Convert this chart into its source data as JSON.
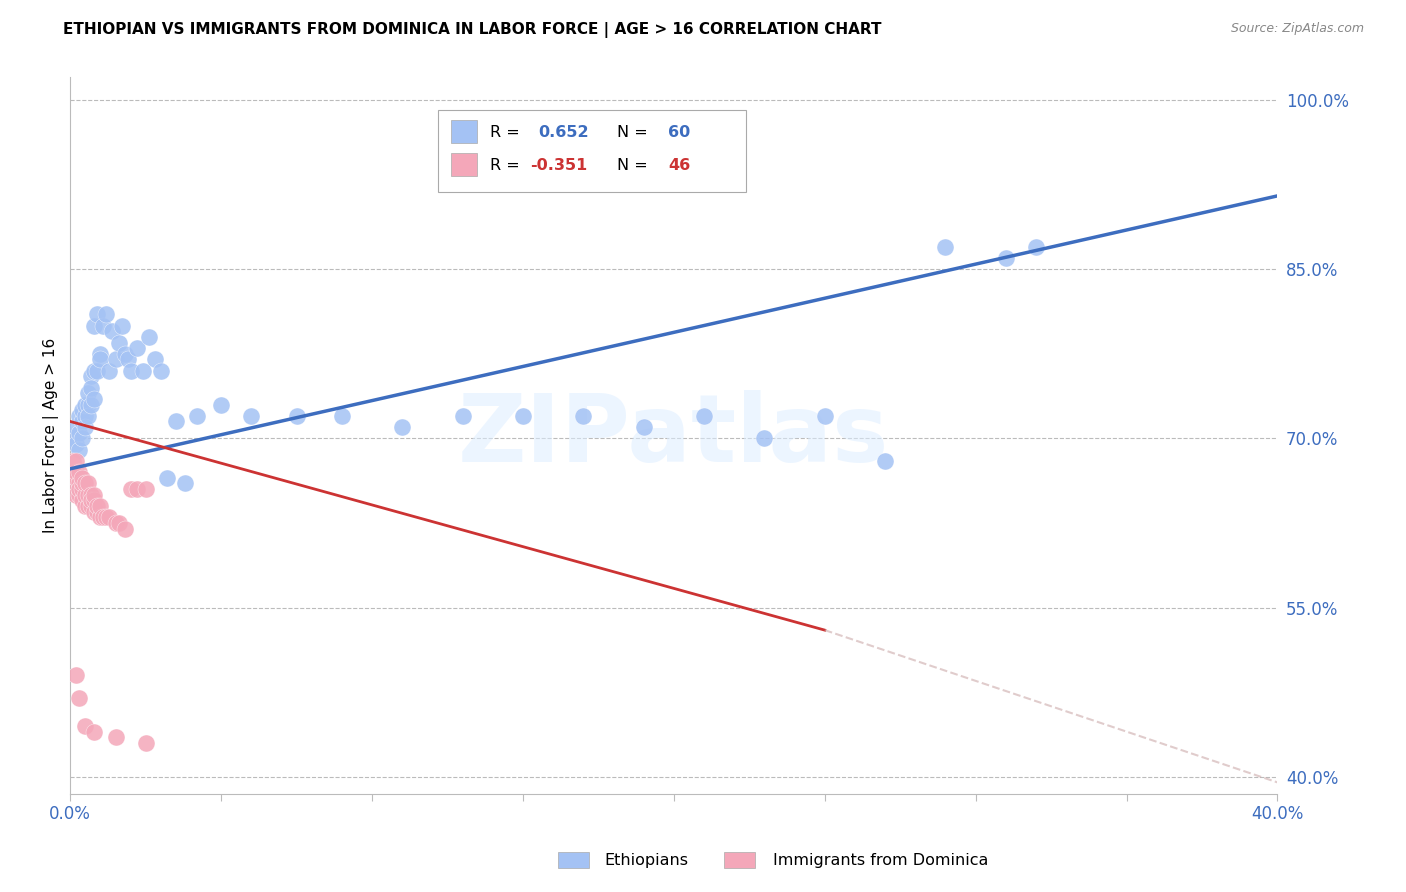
{
  "title": "ETHIOPIAN VS IMMIGRANTS FROM DOMINICA IN LABOR FORCE | AGE > 16 CORRELATION CHART",
  "source": "Source: ZipAtlas.com",
  "ylabel": "In Labor Force | Age > 16",
  "xlim": [
    0.0,
    0.4
  ],
  "ylim": [
    0.385,
    1.02
  ],
  "xticks": [
    0.0,
    0.05,
    0.1,
    0.15,
    0.2,
    0.25,
    0.3,
    0.35,
    0.4
  ],
  "yticks": [
    0.4,
    0.55,
    0.7,
    0.85,
    1.0
  ],
  "yticklabels": [
    "40.0%",
    "55.0%",
    "70.0%",
    "85.0%",
    "100.0%"
  ],
  "blue_R": 0.652,
  "blue_N": 60,
  "pink_R": -0.351,
  "pink_N": 46,
  "blue_color": "#a4c2f4",
  "pink_color": "#f4a7b9",
  "blue_line_color": "#3d6dbf",
  "pink_line_color": "#cc3333",
  "legend_label_blue": "Ethiopians",
  "legend_label_pink": "Immigrants from Dominica",
  "watermark": "ZIPatlas",
  "title_fontsize": 11,
  "axis_color": "#3d6dbf",
  "grid_color": "#bbbbbb",
  "blue_x": [
    0.001,
    0.002,
    0.002,
    0.003,
    0.003,
    0.003,
    0.004,
    0.004,
    0.004,
    0.005,
    0.005,
    0.005,
    0.006,
    0.006,
    0.006,
    0.007,
    0.007,
    0.007,
    0.008,
    0.008,
    0.008,
    0.009,
    0.009,
    0.01,
    0.01,
    0.011,
    0.012,
    0.013,
    0.014,
    0.015,
    0.016,
    0.017,
    0.018,
    0.019,
    0.02,
    0.022,
    0.024,
    0.026,
    0.028,
    0.03,
    0.032,
    0.035,
    0.038,
    0.042,
    0.05,
    0.06,
    0.075,
    0.09,
    0.11,
    0.13,
    0.15,
    0.17,
    0.19,
    0.21,
    0.23,
    0.25,
    0.27,
    0.29,
    0.31,
    0.32
  ],
  "blue_y": [
    0.7,
    0.695,
    0.71,
    0.705,
    0.72,
    0.69,
    0.715,
    0.725,
    0.7,
    0.72,
    0.73,
    0.71,
    0.73,
    0.72,
    0.74,
    0.73,
    0.755,
    0.745,
    0.735,
    0.76,
    0.8,
    0.81,
    0.76,
    0.775,
    0.77,
    0.8,
    0.81,
    0.76,
    0.795,
    0.77,
    0.785,
    0.8,
    0.775,
    0.77,
    0.76,
    0.78,
    0.76,
    0.79,
    0.77,
    0.76,
    0.665,
    0.715,
    0.66,
    0.72,
    0.73,
    0.72,
    0.72,
    0.72,
    0.71,
    0.72,
    0.72,
    0.72,
    0.71,
    0.72,
    0.7,
    0.72,
    0.68,
    0.87,
    0.86,
    0.87
  ],
  "pink_x": [
    0.001,
    0.001,
    0.001,
    0.002,
    0.002,
    0.002,
    0.002,
    0.003,
    0.003,
    0.003,
    0.003,
    0.004,
    0.004,
    0.004,
    0.004,
    0.005,
    0.005,
    0.005,
    0.006,
    0.006,
    0.006,
    0.007,
    0.007,
    0.007,
    0.008,
    0.008,
    0.008,
    0.009,
    0.009,
    0.01,
    0.01,
    0.011,
    0.012,
    0.013,
    0.015,
    0.016,
    0.018,
    0.02,
    0.022,
    0.025,
    0.002,
    0.003,
    0.005,
    0.008,
    0.015,
    0.025
  ],
  "pink_y": [
    0.66,
    0.67,
    0.68,
    0.65,
    0.665,
    0.67,
    0.68,
    0.65,
    0.66,
    0.67,
    0.655,
    0.645,
    0.655,
    0.66,
    0.665,
    0.64,
    0.65,
    0.66,
    0.64,
    0.65,
    0.66,
    0.64,
    0.65,
    0.645,
    0.635,
    0.645,
    0.65,
    0.635,
    0.64,
    0.63,
    0.64,
    0.63,
    0.63,
    0.63,
    0.625,
    0.625,
    0.62,
    0.655,
    0.655,
    0.655,
    0.49,
    0.47,
    0.445,
    0.44,
    0.435,
    0.43
  ],
  "blue_line": [
    [
      0.0,
      0.4
    ],
    [
      0.673,
      0.915
    ]
  ],
  "pink_line_solid": [
    [
      0.0,
      0.25
    ],
    [
      0.715,
      0.53
    ]
  ],
  "pink_line_dash": [
    [
      0.25,
      0.4
    ],
    [
      0.53,
      0.395
    ]
  ]
}
